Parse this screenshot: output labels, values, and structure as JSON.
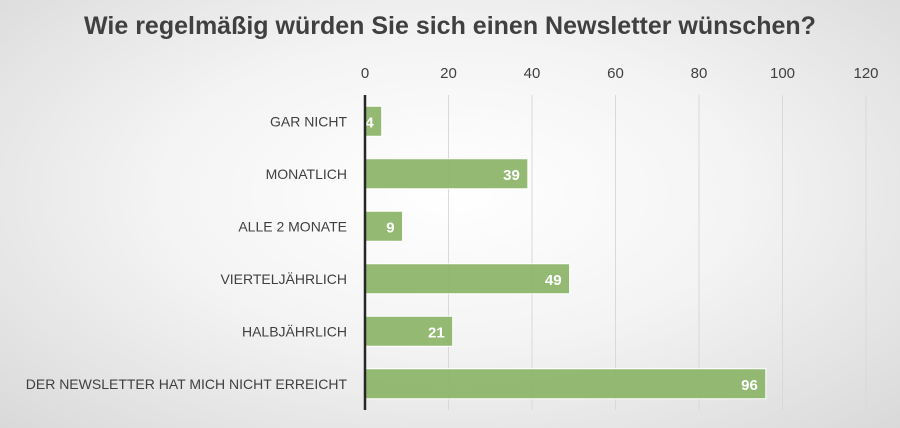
{
  "chart_data": {
    "type": "bar",
    "orientation": "horizontal",
    "title": "Wie regelmäßig würden Sie sich einen Newsletter wünschen?",
    "categories": [
      "GAR NICHT",
      "MONATLICH",
      "ALLE 2 MONATE",
      "VIERTELJÄHRLICH",
      "HALBJÄHRLICH",
      "DER NEWSLETTER HAT MICH NICHT ERREICHT"
    ],
    "values": [
      4,
      39,
      9,
      49,
      21,
      96
    ],
    "xlim": [
      0,
      120
    ],
    "ticks": [
      0,
      20,
      40,
      60,
      80,
      100,
      120
    ],
    "grid": true,
    "axis_position": "top",
    "bar_color": "#8db56a",
    "label_color": "#ffffff"
  }
}
